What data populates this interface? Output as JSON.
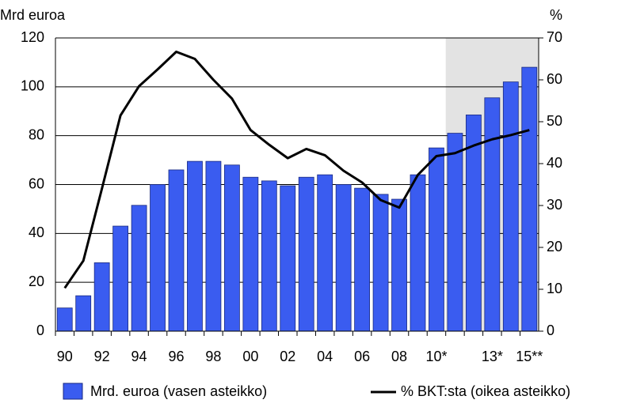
{
  "chart_data": {
    "type": "bar-line",
    "ylabel": "Mrd euroa",
    "y2label": "%",
    "categories": [
      "90",
      null,
      "92",
      null,
      "94",
      null,
      "96",
      null,
      "98",
      null,
      "00",
      null,
      "02",
      null,
      "04",
      null,
      "06",
      null,
      "08",
      null,
      "10*",
      null,
      null,
      "13*",
      null,
      "15**"
    ],
    "series": [
      {
        "name": "Mrd. euroa (vasen asteikko)",
        "type": "bar",
        "color": "#3a5cf0",
        "values": [
          9.5,
          14.5,
          28,
          43,
          51.5,
          60,
          66,
          69.5,
          69.5,
          68,
          63,
          61.5,
          59.5,
          63,
          64,
          60,
          58.5,
          56,
          54,
          64,
          75,
          81,
          88.5,
          95.5,
          102,
          108
        ]
      },
      {
        "name": "% BKT:sta (oikea asteikko)",
        "type": "line",
        "color": "#000000",
        "axis": "y2",
        "values": [
          10.3,
          16.8,
          34,
          51.5,
          58.5,
          62.5,
          66.7,
          65,
          60,
          55.5,
          48,
          44.5,
          41.3,
          43.5,
          42,
          38.3,
          35.5,
          31.3,
          29.5,
          37.3,
          41.8,
          42.5,
          44.3,
          45.8,
          46.8,
          48
        ]
      }
    ],
    "ylim": [
      0,
      120
    ],
    "yticks": [
      0,
      20,
      40,
      60,
      80,
      100,
      120
    ],
    "y2lim": [
      0,
      70
    ],
    "y2ticks": [
      0,
      10,
      20,
      30,
      40,
      50,
      60,
      70
    ],
    "grid": true
  }
}
